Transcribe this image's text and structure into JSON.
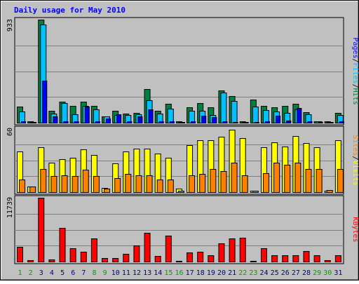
{
  "chart_data": {
    "type": "bar",
    "title": "Daily usage for May 2010",
    "categories": [
      "1",
      "2",
      "3",
      "4",
      "5",
      "6",
      "7",
      "8",
      "9",
      "10",
      "11",
      "12",
      "13",
      "14",
      "15",
      "16",
      "17",
      "18",
      "19",
      "20",
      "21",
      "22",
      "23",
      "24",
      "25",
      "26",
      "27",
      "28",
      "29",
      "30",
      "31"
    ],
    "weekend_days": [
      "1",
      "2",
      "8",
      "9",
      "15",
      "16",
      "22",
      "23",
      "29",
      "30"
    ],
    "panels": [
      {
        "id": "hits",
        "max_label": "933",
        "ymax": 933,
        "side_label": [
          "Pages",
          "/",
          "Files",
          "/",
          "Hits"
        ],
        "series": [
          {
            "name": "Hits",
            "color": "#008040",
            "values": [
              145,
              12,
              933,
              110,
              190,
              150,
              190,
              150,
              60,
              110,
              80,
              90,
              305,
              110,
              170,
              10,
              140,
              175,
              140,
              290,
              240,
              12,
              210,
              150,
              140,
              150,
              170,
              95,
              12,
              12,
              90
            ]
          },
          {
            "name": "Files",
            "color": "#00c0ff",
            "values": [
              100,
              8,
              888,
              80,
              175,
              75,
              155,
              120,
              55,
              70,
              70,
              75,
              200,
              80,
              125,
              6,
              110,
              110,
              70,
              270,
              195,
              8,
              145,
              115,
              100,
              90,
              120,
              75,
              10,
              8,
              70
            ]
          },
          {
            "name": "Pages",
            "color": "#0000ff",
            "values": [
              10,
              2,
              380,
              55,
              15,
              10,
              145,
              15,
              40,
              75,
              10,
              55,
              120,
              15,
              10,
              1,
              10,
              65,
              50,
              10,
              5,
              2,
              5,
              10,
              65,
              20,
              135,
              10,
              2,
              2,
              10
            ]
          }
        ]
      },
      {
        "id": "visits",
        "max_label": "60",
        "ymax": 60,
        "side_label": [
          "Sites",
          "/",
          "Visits"
        ],
        "series": [
          {
            "name": "Visits",
            "color": "#ffff00",
            "values": [
              38,
              5,
              42,
              28,
              31,
              32,
              40,
              35,
              4,
              27,
              38,
              41,
              41,
              36,
              32,
              3,
              44,
              49,
              49,
              52,
              59,
              51,
              1,
              42,
              47,
              43,
              53,
              46,
              42,
              1,
              49
            ]
          },
          {
            "name": "Sites",
            "color": "#ff8000",
            "values": [
              12,
              5,
              22,
              15,
              16,
              15,
              21,
              15,
              3,
              13,
              17,
              16,
              16,
              12,
              12,
              1,
              16,
              17,
              22,
              20,
              28,
              16,
              1,
              18,
              28,
              26,
              28,
              22,
              22,
              2,
              22
            ]
          }
        ]
      },
      {
        "id": "kbytes",
        "max_label": "11739",
        "ymax": 11739,
        "side_label": [
          "KBytes"
        ],
        "series": [
          {
            "name": "KBytes",
            "color": "#ff0000",
            "values": [
              2700,
              200,
              11739,
              400,
              6200,
              2500,
              1800,
              4200,
              600,
              700,
              1400,
              3000,
              5300,
              1000,
              4800,
              100,
              1700,
              1800,
              1200,
              3300,
              4200,
              4400,
              100,
              2500,
              1200,
              1100,
              1200,
              1900,
              1100,
              300,
              1200
            ]
          }
        ]
      }
    ],
    "colors": {
      "panel_bg": "#c0c0c0",
      "title": "#0000ff",
      "weekday_label": "#000080",
      "weekend_label": "#00a000",
      "slash": "#000000"
    }
  }
}
